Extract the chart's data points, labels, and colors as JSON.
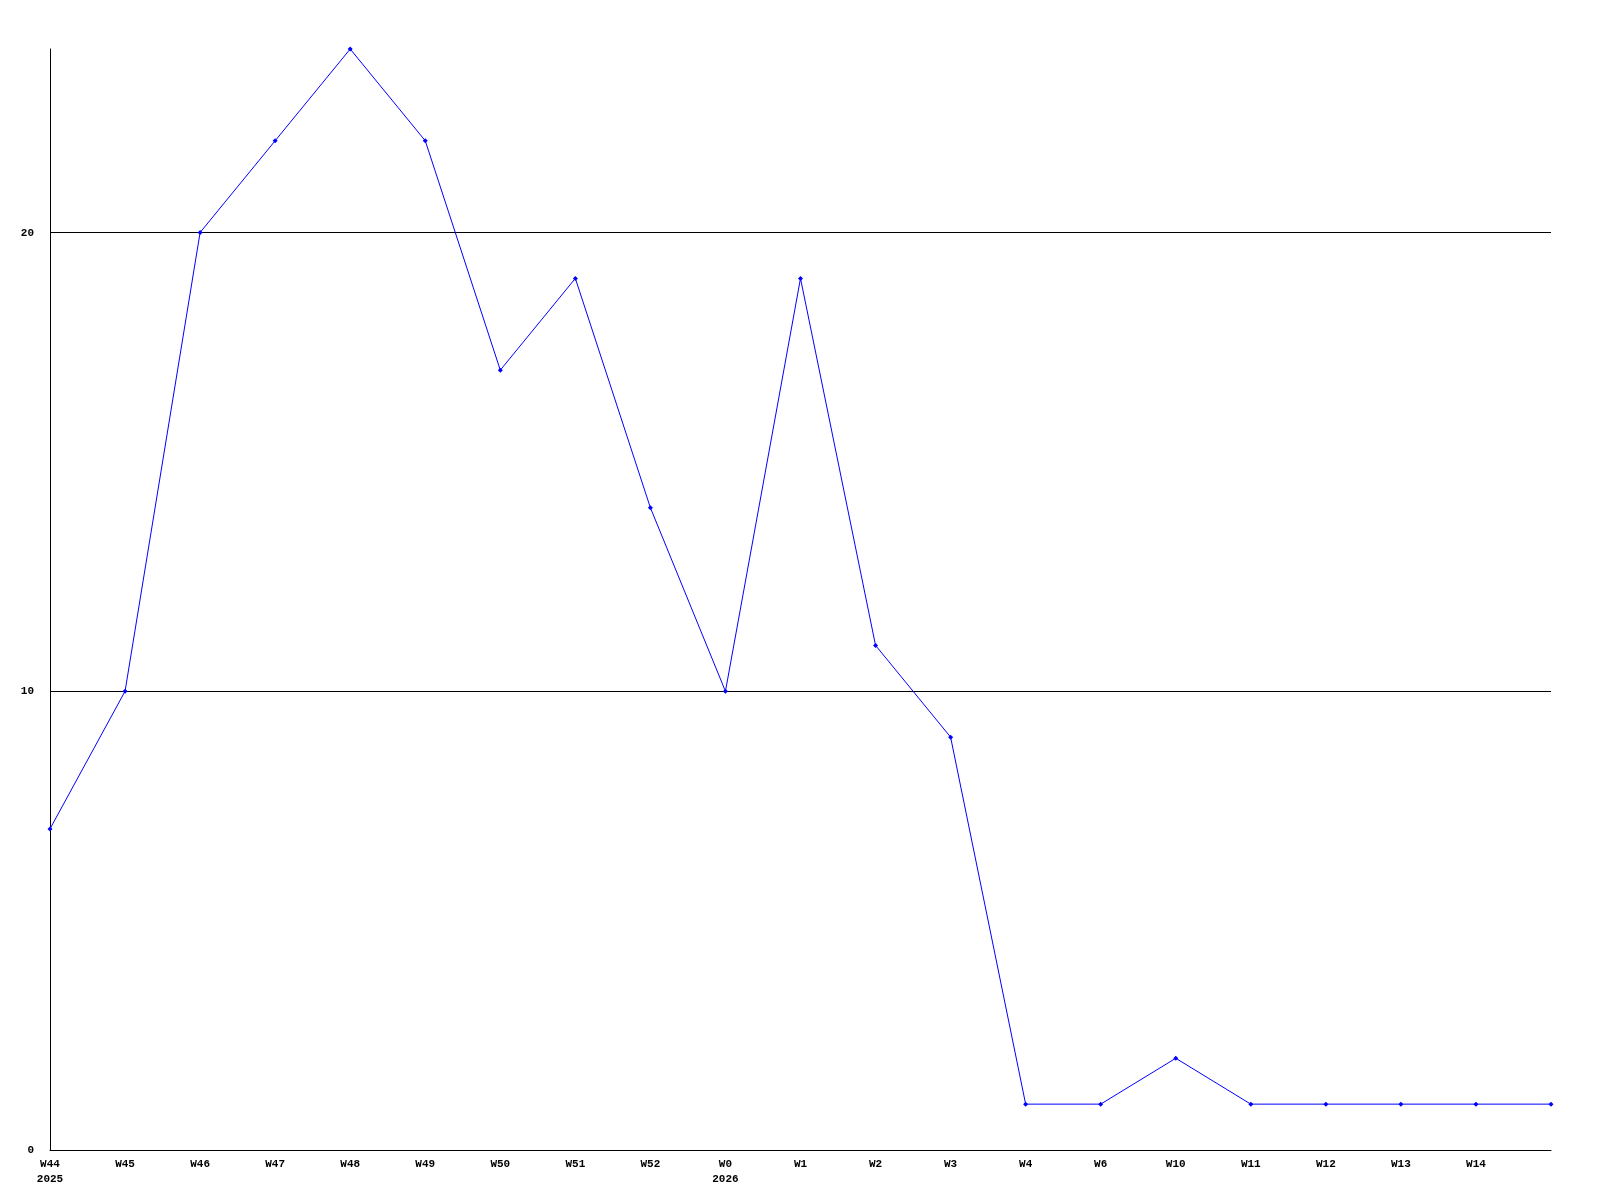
{
  "chart_data": {
    "type": "line",
    "categories": [
      "W44\n2025",
      "W45",
      "W46",
      "W47",
      "W48",
      "W49",
      "W50",
      "W51",
      "W52",
      "W0\n2026",
      "W1",
      "W2",
      "W3",
      "W4",
      "W6",
      "W10",
      "W11",
      "W12",
      "W13",
      "W14",
      null
    ],
    "series": [
      {
        "color": "#0000ff",
        "values": [
          7,
          10,
          20,
          22,
          24,
          22,
          17,
          19,
          14,
          10,
          19,
          11,
          9,
          1,
          1,
          2,
          1,
          1,
          1,
          1,
          1
        ]
      }
    ],
    "ylim": [
      0,
      24
    ],
    "yticks": [
      0,
      10,
      20
    ],
    "grid": "y",
    "marker": "diamond",
    "line_style": "solid"
  }
}
